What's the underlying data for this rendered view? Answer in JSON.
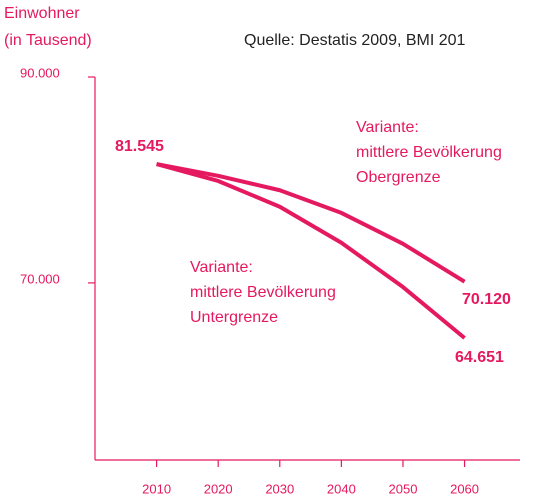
{
  "chart_data": {
    "type": "line",
    "ylabel": [
      "Einwohner",
      "(in Tausend)"
    ],
    "source": "Quelle: Destatis 2009, BMI 201",
    "x": [
      2010,
      2020,
      2030,
      2040,
      2050,
      2060
    ],
    "xlim": [
      2000,
      2069
    ],
    "xticks": [
      2010,
      2020,
      2030,
      2040,
      2050,
      2060
    ],
    "ylim": [
      52800,
      90000
    ],
    "yticks": [
      {
        "value": 70000,
        "label": "70.000"
      },
      {
        "value": 90000,
        "label": "90.000"
      }
    ],
    "series": [
      {
        "name": [
          "Variante:",
          "mittlere Bevölkerung",
          "Obergrenze"
        ],
        "color": "#e5195f",
        "values": [
          81545,
          80400,
          79000,
          76800,
          73800,
          70120
        ],
        "value_labels": [
          "81.545",
          null,
          null,
          null,
          null,
          "70.120"
        ]
      },
      {
        "name": [
          "Variante:",
          "mittlere Bevölkerung",
          "Untergrenze"
        ],
        "color": "#e5195f",
        "values": [
          81545,
          79900,
          77400,
          73900,
          69600,
          64651
        ],
        "value_labels": [
          null,
          null,
          null,
          null,
          null,
          "64.651"
        ]
      }
    ]
  }
}
